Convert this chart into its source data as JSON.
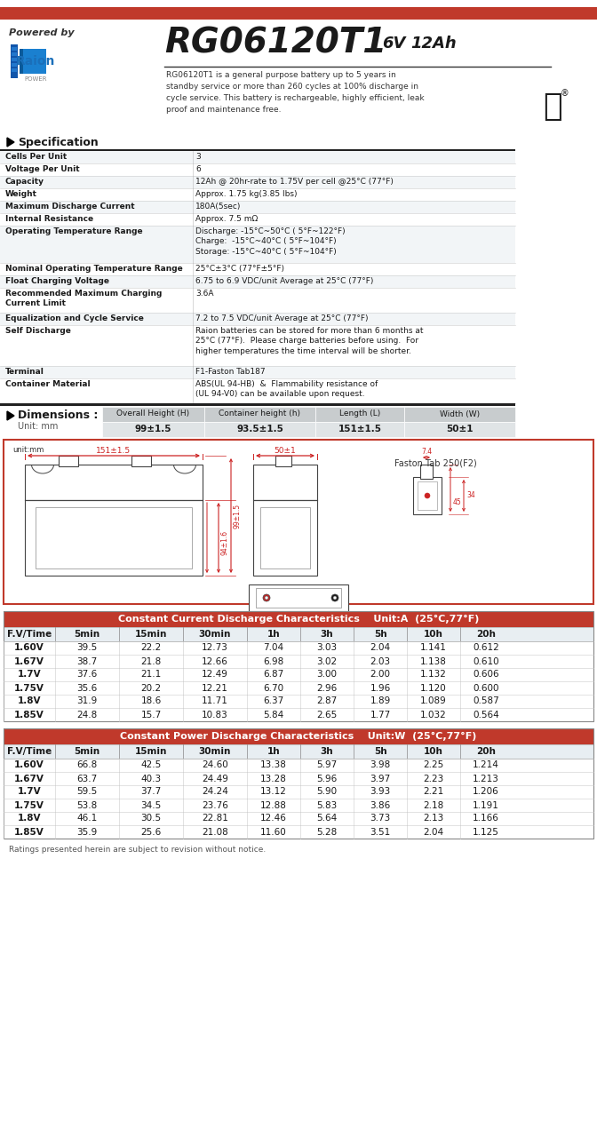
{
  "title_model": "RG06120T1",
  "title_spec": "6V  12Ah",
  "powered_by": "Powered by",
  "description": "RG06120T1 is a general purpose battery up to 5 years in\nstandby service or more than 260 cycles at 100% discharge in\ncycle service. This battery is rechargeable, highly efficient, leak\nproof and maintenance free.",
  "spec_title": "Specification",
  "spec_rows": [
    [
      "Cells Per Unit",
      "3"
    ],
    [
      "Voltage Per Unit",
      "6"
    ],
    [
      "Capacity",
      "12Ah @ 20hr-rate to 1.75V per cell @25°C (77°F)"
    ],
    [
      "Weight",
      "Approx. 1.75 kg(3.85 lbs)"
    ],
    [
      "Maximum Discharge Current",
      "180A(5sec)"
    ],
    [
      "Internal Resistance",
      "Approx. 7.5 mΩ"
    ],
    [
      "Operating Temperature Range",
      "Discharge: -15°C~50°C ( 5°F~122°F)\nCharge:  -15°C~40°C ( 5°F~104°F)\nStorage: -15°C~40°C ( 5°F~104°F)"
    ],
    [
      "Nominal Operating Temperature Range",
      "25°C±3°C (77°F±5°F)"
    ],
    [
      "Float Charging Voltage",
      "6.75 to 6.9 VDC/unit Average at 25°C (77°F)"
    ],
    [
      "Recommended Maximum Charging\nCurrent Limit",
      "3.6A"
    ],
    [
      "Equalization and Cycle Service",
      "7.2 to 7.5 VDC/unit Average at 25°C (77°F)"
    ],
    [
      "Self Discharge",
      "Raion batteries can be stored for more than 6 months at\n25°C (77°F).  Please charge batteries before using.  For\nhigher temperatures the time interval will be shorter."
    ],
    [
      "Terminal",
      "F1-Faston Tab187"
    ],
    [
      "Container Material",
      "ABS(UL 94-HB)  &  Flammability resistance of\n(UL 94-V0) can be available upon request."
    ]
  ],
  "dim_title": "Dimensions :",
  "dim_unit": "Unit: mm",
  "dim_headers": [
    "Overall Height (H)",
    "Container height (h)",
    "Length (L)",
    "Width (W)"
  ],
  "dim_values": [
    "99±1.5",
    "93.5±1.5",
    "151±1.5",
    "50±1"
  ],
  "cc_title": "Constant Current Discharge Characteristics",
  "cc_unit": "Unit:A  (25°C,77°F)",
  "cc_headers": [
    "F.V/Time",
    "5min",
    "15min",
    "30min",
    "1h",
    "3h",
    "5h",
    "10h",
    "20h"
  ],
  "cc_rows": [
    [
      "1.60V",
      "39.5",
      "22.2",
      "12.73",
      "7.04",
      "3.03",
      "2.04",
      "1.141",
      "0.612"
    ],
    [
      "1.67V",
      "38.7",
      "21.8",
      "12.66",
      "6.98",
      "3.02",
      "2.03",
      "1.138",
      "0.610"
    ],
    [
      "1.7V",
      "37.6",
      "21.1",
      "12.49",
      "6.87",
      "3.00",
      "2.00",
      "1.132",
      "0.606"
    ],
    [
      "1.75V",
      "35.6",
      "20.2",
      "12.21",
      "6.70",
      "2.96",
      "1.96",
      "1.120",
      "0.600"
    ],
    [
      "1.8V",
      "31.9",
      "18.6",
      "11.71",
      "6.37",
      "2.87",
      "1.89",
      "1.089",
      "0.587"
    ],
    [
      "1.85V",
      "24.8",
      "15.7",
      "10.83",
      "5.84",
      "2.65",
      "1.77",
      "1.032",
      "0.564"
    ]
  ],
  "cp_title": "Constant Power Discharge Characteristics",
  "cp_unit": "Unit:W  (25°C,77°F)",
  "cp_headers": [
    "F.V/Time",
    "5min",
    "15min",
    "30min",
    "1h",
    "3h",
    "5h",
    "10h",
    "20h"
  ],
  "cp_rows": [
    [
      "1.60V",
      "66.8",
      "42.5",
      "24.60",
      "13.38",
      "5.97",
      "3.98",
      "2.25",
      "1.214"
    ],
    [
      "1.67V",
      "63.7",
      "40.3",
      "24.49",
      "13.28",
      "5.96",
      "3.97",
      "2.23",
      "1.213"
    ],
    [
      "1.7V",
      "59.5",
      "37.7",
      "24.24",
      "13.12",
      "5.90",
      "3.93",
      "2.21",
      "1.206"
    ],
    [
      "1.75V",
      "53.8",
      "34.5",
      "23.76",
      "12.88",
      "5.83",
      "3.86",
      "2.18",
      "1.191"
    ],
    [
      "1.8V",
      "46.1",
      "30.5",
      "22.81",
      "12.46",
      "5.64",
      "3.73",
      "2.13",
      "1.166"
    ],
    [
      "1.85V",
      "35.9",
      "25.6",
      "21.08",
      "11.60",
      "5.28",
      "3.51",
      "2.04",
      "1.125"
    ]
  ],
  "footer": "Ratings presented herein are subject to revision without notice.",
  "red_bar_color": "#c0392b",
  "table_header_bg": "#c0392b",
  "table_row_even": "#ffffff",
  "table_row_odd": "#ffffff",
  "table_border": "#999999",
  "diagram_border": "#c0392b",
  "dim_header_bg": "#c8ccce",
  "dim_val_bg": "#e0e4e6"
}
